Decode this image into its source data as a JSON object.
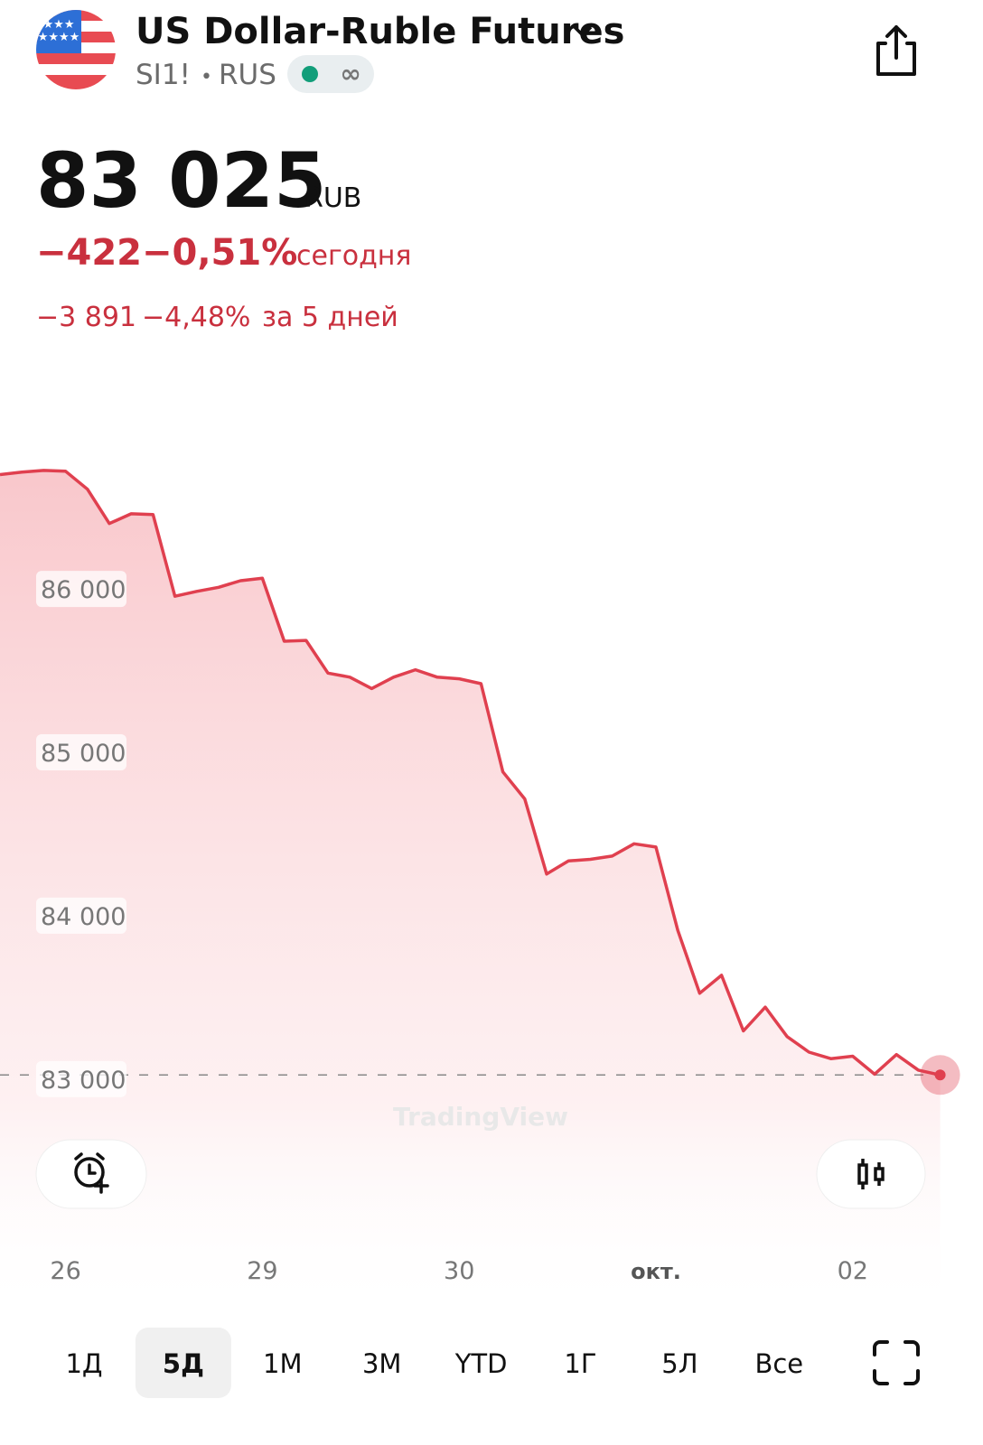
{
  "header": {
    "title": "US Dollar-Ruble Futures",
    "symbol": "SI1!",
    "exchange": "RUS"
  },
  "quote": {
    "price": "83 025",
    "currency": "RUB",
    "change_today": "−422",
    "change_today_pct": "−0,51%",
    "today_label": "сегодня",
    "change_period": "−3 891",
    "change_period_pct": "−4,48%",
    "period_label": "за 5 дней"
  },
  "chart_data": {
    "type": "area",
    "color": "#e0404f",
    "watermark": "TradingView",
    "categories": [
      null,
      null,
      null,
      "26",
      null,
      null,
      null,
      null,
      null,
      null,
      null,
      null,
      "29",
      null,
      null,
      null,
      null,
      null,
      null,
      null,
      null,
      "30",
      null,
      null,
      null,
      null,
      null,
      null,
      null,
      null,
      "окт.",
      null,
      null,
      null,
      null,
      null,
      null,
      null,
      null,
      "02",
      null,
      null,
      null,
      null
    ],
    "values": [
      86700,
      86715,
      86725,
      86720,
      86610,
      86400,
      86460,
      86455,
      85955,
      85985,
      86010,
      86050,
      86065,
      85680,
      85685,
      85485,
      85460,
      85390,
      85460,
      85505,
      85460,
      85450,
      85420,
      84880,
      84715,
      84255,
      84335,
      84345,
      84365,
      84440,
      84420,
      83910,
      83525,
      83635,
      83295,
      83440,
      83260,
      83165,
      83125,
      83140,
      83030,
      83150,
      83055,
      83025
    ],
    "ylim": [
      81700,
      87200
    ],
    "yticks": [
      {
        "value": 83000,
        "label": "83 000"
      },
      {
        "value": 84000,
        "label": "84 000"
      },
      {
        "value": 85000,
        "label": "85 000"
      },
      {
        "value": 86000,
        "label": "86 000"
      }
    ]
  },
  "range_tabs": {
    "items": [
      "1Д",
      "5Д",
      "1М",
      "3М",
      "YTD",
      "1Г",
      "5Л",
      "Все"
    ],
    "selected": 1
  }
}
